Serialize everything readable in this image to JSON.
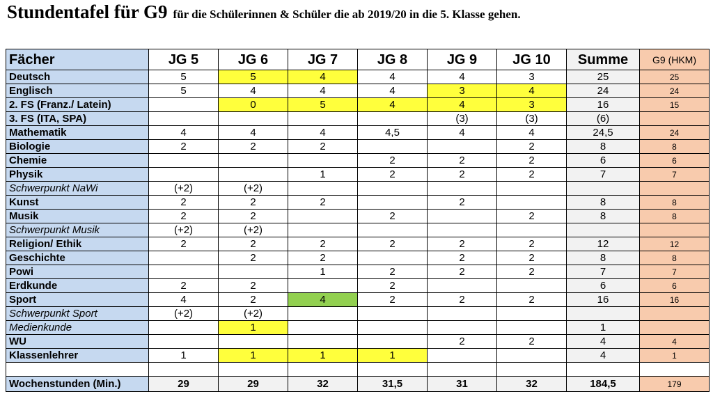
{
  "header": {
    "title": "Stundentafel für G9",
    "subtitle": "für die Schülerinnen & Schüler die ab 2019/20 in die 5. Klasse gehen."
  },
  "table": {
    "columns": [
      "Fächer",
      "JG 5",
      "JG 6",
      "JG 7",
      "JG 8",
      "JG 9",
      "JG 10",
      "Summe",
      "G9 (HKM)"
    ],
    "rows": [
      [
        "Deutsch",
        5,
        5,
        4,
        4,
        4,
        3,
        25,
        25
      ],
      [
        "Englisch",
        5,
        4,
        4,
        4,
        3,
        4,
        24,
        24
      ],
      [
        "2. FS (Franz./ Latein)",
        null,
        0,
        5,
        4,
        4,
        3,
        16,
        15
      ],
      [
        "3. FS (ITA, SPA)",
        null,
        null,
        null,
        null,
        "(3)",
        "(3)",
        "(6)",
        null
      ],
      [
        "Mathematik",
        4,
        4,
        4,
        "4,5",
        4,
        4,
        "24,5",
        24
      ],
      [
        "Biologie",
        2,
        2,
        2,
        null,
        null,
        2,
        8,
        8
      ],
      [
        "Chemie",
        null,
        null,
        null,
        2,
        2,
        2,
        6,
        6
      ],
      [
        "Physik",
        null,
        null,
        1,
        2,
        2,
        2,
        7,
        7
      ],
      [
        "Schwerpunkt NaWi",
        "(+2)",
        "(+2)",
        null,
        null,
        null,
        null,
        null,
        null
      ],
      [
        "Kunst",
        2,
        2,
        2,
        null,
        2,
        null,
        8,
        8
      ],
      [
        "Musik",
        2,
        2,
        null,
        2,
        null,
        2,
        8,
        8
      ],
      [
        "Schwerpunkt Musik",
        "(+2)",
        "(+2)",
        null,
        null,
        null,
        null,
        null,
        null
      ],
      [
        "Religion/ Ethik",
        2,
        2,
        2,
        2,
        2,
        2,
        12,
        12
      ],
      [
        "Geschichte",
        null,
        2,
        2,
        null,
        2,
        2,
        8,
        8
      ],
      [
        "Powi",
        null,
        null,
        1,
        2,
        2,
        2,
        7,
        7
      ],
      [
        "Erdkunde",
        2,
        2,
        null,
        2,
        null,
        null,
        6,
        6
      ],
      [
        "Sport",
        4,
        2,
        4,
        2,
        2,
        2,
        16,
        16
      ],
      [
        "Schwerpunkt Sport",
        "(+2)",
        "(+2)",
        null,
        null,
        null,
        null,
        null,
        null
      ],
      [
        "Medienkunde",
        null,
        1,
        null,
        null,
        null,
        null,
        1,
        null
      ],
      [
        "WU",
        null,
        null,
        null,
        null,
        2,
        2,
        4,
        4
      ],
      [
        "Klassenlehrer",
        1,
        1,
        1,
        1,
        null,
        null,
        4,
        1
      ],
      [
        null,
        null,
        null,
        null,
        null,
        null,
        null,
        null,
        null
      ],
      [
        "Wochenstunden (Min.)",
        29,
        29,
        32,
        "31,5",
        31,
        32,
        "184,5",
        179
      ]
    ]
  }
}
